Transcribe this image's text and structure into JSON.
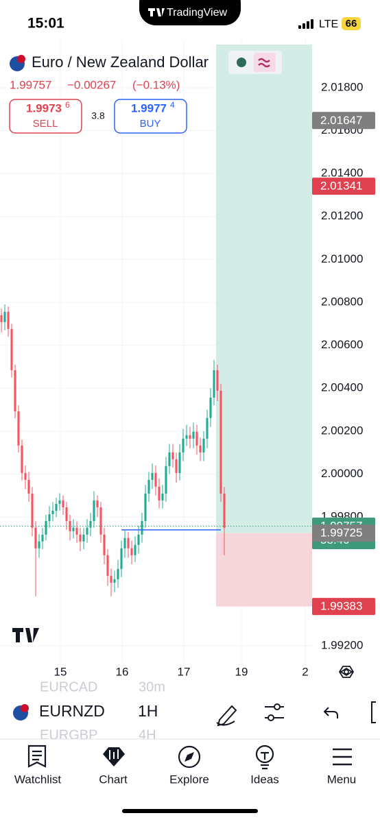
{
  "status_bar": {
    "time": "15:01",
    "app": "TradingView",
    "network": "LTE",
    "battery": "66"
  },
  "header": {
    "symbol_name": "Euro / New Zealand Dollar",
    "last": "1.99757",
    "change": "−0.00267",
    "change_pct": "(−0.13%)",
    "sell_price": "1.9973",
    "sell_sup": "6",
    "sell_label": "SELL",
    "spread": "3.8",
    "buy_price": "1.9977",
    "buy_sup": "4",
    "buy_label": "BUY"
  },
  "chart_data": {
    "type": "candlestick",
    "up_color": "#22ab94",
    "down_color": "#f7525f",
    "grid": true,
    "xlim": [
      -0.4,
      90.6
    ],
    "ylim": [
      1.9912,
      2.0202
    ],
    "xticks": [
      {
        "value": 17.2,
        "label": "15"
      },
      {
        "value": 35.2,
        "label": "16"
      },
      {
        "value": 53.2,
        "label": "17"
      },
      {
        "value": 70,
        "label": "19"
      },
      {
        "value": 88.6,
        "label": "2"
      }
    ],
    "yticks": [
      {
        "value": 2.018,
        "label": "2.01800"
      },
      {
        "value": 2.016,
        "label": "2.01600"
      },
      {
        "value": 2.014,
        "label": "2.01400"
      },
      {
        "value": 2.012,
        "label": "2.01200"
      },
      {
        "value": 2.01,
        "label": "2.01000"
      },
      {
        "value": 2.008,
        "label": "2.00800"
      },
      {
        "value": 2.006,
        "label": "2.00600"
      },
      {
        "value": 2.004,
        "label": "2.00400"
      },
      {
        "value": 2.002,
        "label": "2.00200"
      },
      {
        "value": 2,
        "label": "2.00000"
      },
      {
        "value": 1.998,
        "label": "1.99800"
      },
      {
        "value": 1.992,
        "label": "1.99200"
      }
    ],
    "candles": {
      "x": [
        0,
        1,
        2,
        3,
        4,
        5,
        6,
        7,
        8,
        9,
        10,
        11,
        12,
        13,
        14,
        15,
        16,
        17,
        18,
        19,
        20,
        21,
        22,
        23,
        24,
        25,
        26,
        27,
        28,
        29,
        30,
        31,
        32,
        33,
        34,
        35,
        36,
        37,
        38,
        39,
        40,
        41,
        42,
        43,
        44,
        45,
        46,
        47,
        48,
        49,
        50,
        51,
        52,
        53,
        54,
        55,
        56,
        57,
        58,
        59,
        60,
        61,
        62,
        63,
        64,
        65
      ],
      "open": [
        2.0074,
        2.00708,
        2.00756,
        2.00676,
        2.00484,
        2.00292,
        2.00133,
        2.00005,
        1.99973,
        1.99909,
        1.9975,
        1.99654,
        1.99686,
        1.99718,
        1.99781,
        1.99813,
        1.99829,
        1.99861,
        1.99877,
        1.99845,
        1.99781,
        1.99734,
        1.9975,
        1.99718,
        1.99686,
        1.99718,
        1.9975,
        1.99781,
        1.99877,
        1.99845,
        1.99718,
        1.99622,
        1.99526,
        1.99494,
        1.9951,
        1.99558,
        1.99654,
        1.99702,
        1.99654,
        1.99622,
        1.9967,
        1.99718,
        1.99781,
        1.99909,
        1.99973,
        2.00005,
        1.99941,
        1.99877,
        1.99909,
        2.00037,
        2.00101,
        2.00069,
        2.00005,
        2.00101,
        2.00165,
        2.00181,
        2.00165,
        2.00197,
        2.00133,
        2.00101,
        2.00165,
        2.00261,
        2.00356,
        2.00484,
        2.00388,
        1.99909
      ],
      "high": [
        2.00771,
        2.0079,
        2.0078,
        2.007,
        2.0051,
        2.0032,
        2.0016,
        2.0004,
        2.0001,
        1.9994,
        1.9978,
        1.9972,
        1.9975,
        1.9981,
        1.9985,
        1.9987,
        1.9989,
        1.9991,
        1.999,
        1.9987,
        1.9981,
        1.9979,
        1.9978,
        1.9975,
        1.9975,
        1.9979,
        1.9982,
        1.9992,
        1.999,
        1.9987,
        1.9975,
        1.9965,
        1.9956,
        1.9955,
        1.996,
        1.9969,
        1.9974,
        1.9973,
        1.9969,
        1.9971,
        1.9976,
        1.9982,
        1.9995,
        2.0001,
        2.0005,
        2.0004,
        1.9998,
        1.9995,
        2.0008,
        2.0014,
        2.0014,
        2.001,
        2.0014,
        2.0021,
        2.0023,
        2.0022,
        2.0024,
        2.0023,
        2.0017,
        2.002,
        2.003,
        2.004,
        2.00532,
        2.0051,
        2.0042,
        1.9994
      ],
      "low": [
        2.0066,
        2.0067,
        2.0064,
        2.0045,
        2.0026,
        2.001,
        1.9997,
        1.9993,
        1.9987,
        1.9971,
        1.9943,
        1.9961,
        1.9965,
        1.9969,
        1.9975,
        1.9978,
        1.998,
        1.9983,
        1.9981,
        1.9974,
        1.9969,
        1.997,
        1.9968,
        1.9964,
        1.9965,
        1.9968,
        1.9971,
        1.9975,
        1.998,
        1.9968,
        1.9958,
        1.9948,
        1.9943,
        1.9945,
        1.9947,
        1.9952,
        1.9961,
        1.9961,
        1.9958,
        1.9959,
        1.9963,
        1.9968,
        1.9975,
        1.9987,
        1.9993,
        1.999,
        1.9984,
        1.9984,
        1.9987,
        2,
        2.0003,
        1.9996,
        1.9997,
        2.0006,
        2.0013,
        2.0012,
        2.0012,
        2.0009,
        2.0006,
        2.0006,
        2.0012,
        2.0022,
        2.0032,
        2.0034,
        1.9987,
        1.99622
      ],
      "close": [
        2.00708,
        2.00756,
        2.00676,
        2.00484,
        2.00292,
        2.00133,
        2.00005,
        1.99973,
        1.99909,
        1.9975,
        1.99654,
        1.99686,
        1.99718,
        1.99781,
        1.99813,
        1.99829,
        1.99861,
        1.99877,
        1.99845,
        1.99781,
        1.99734,
        1.9975,
        1.99718,
        1.99686,
        1.99718,
        1.9975,
        1.99781,
        1.99877,
        1.99845,
        1.99718,
        1.99622,
        1.99526,
        1.99494,
        1.9951,
        1.99558,
        1.99654,
        1.99702,
        1.99654,
        1.99622,
        1.9967,
        1.99718,
        1.99781,
        1.99909,
        1.99973,
        2.00005,
        1.99941,
        1.99877,
        1.99909,
        2.00037,
        2.00101,
        2.00069,
        2.00005,
        2.00101,
        2.00165,
        2.00181,
        2.00165,
        2.00197,
        2.00133,
        2.00101,
        2.00165,
        2.00261,
        2.00356,
        2.00484,
        2.00388,
        1.99909,
        1.9975
      ]
    },
    "position": {
      "start": 62.6,
      "entry": 1.99725,
      "stop": 1.99383,
      "profit_color": "#d4ece6",
      "loss_color": "#f6d6da"
    },
    "order_line": {
      "value": 1.9974,
      "from": 35,
      "to": 64,
      "color": "#2962ff"
    },
    "price_labels": [
      {
        "value": 2.01647,
        "color": "#7f7f7f"
      },
      {
        "value": 2.01341,
        "color": "#e0414f"
      },
      {
        "value": 1.99757,
        "color": "#3d9a7a",
        "countdown": "58:40"
      },
      {
        "value": 1.99725,
        "color": "#7f7f7f"
      },
      {
        "value": 1.99383,
        "color": "#e0414f"
      }
    ]
  },
  "toolbar": {
    "symbol": "EURNZD",
    "interval": "1H",
    "ghost_above": {
      "symbol": "EURCAD",
      "interval": "30m"
    },
    "ghost_below": {
      "symbol": "EURGBP",
      "interval": "4H"
    }
  },
  "nav": [
    "Watchlist",
    "Chart",
    "Explore",
    "Ideas",
    "Menu"
  ]
}
